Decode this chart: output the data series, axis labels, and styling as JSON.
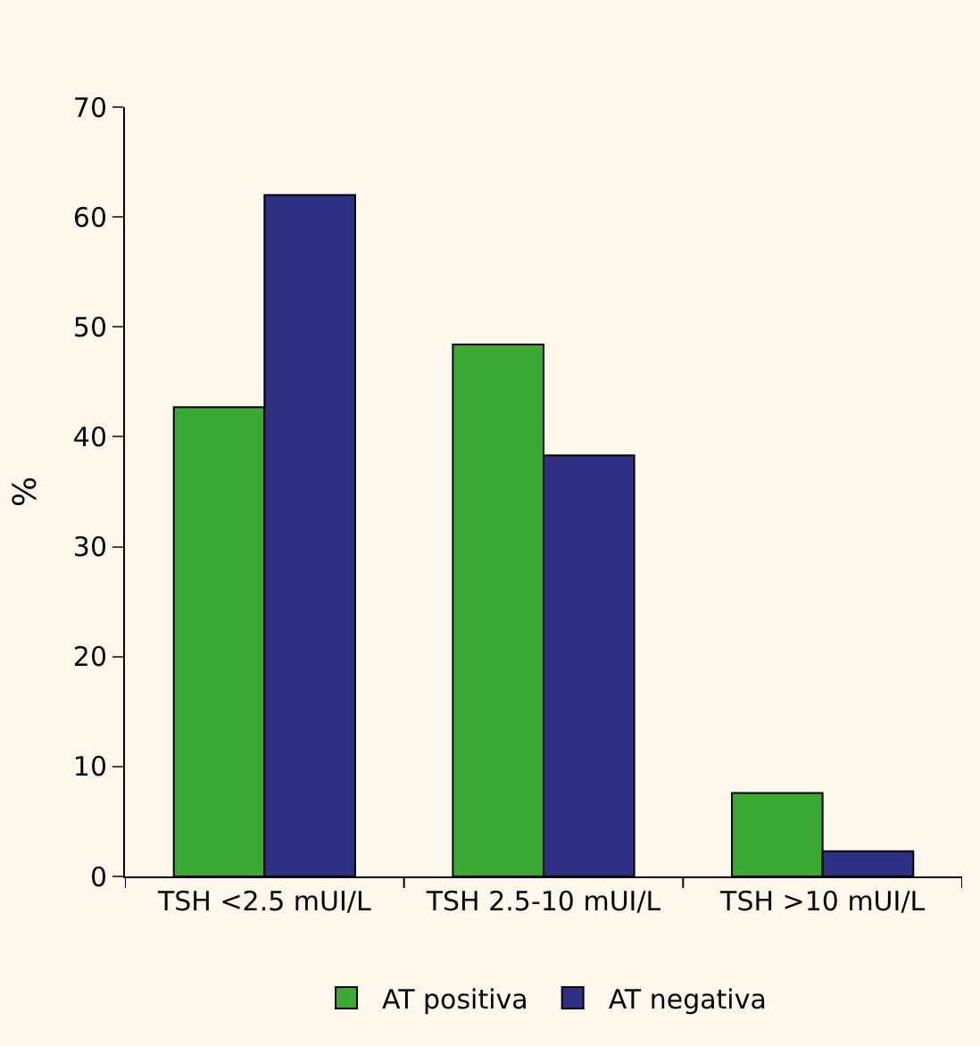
{
  "chart_data": {
    "type": "bar",
    "ylabel": "%",
    "categories": [
      "TSH <2.5 mUI/L",
      "TSH 2.5-10 mUI/L",
      "TSH >10 mUI/L"
    ],
    "series": [
      {
        "name": "AT positiva",
        "color": "#3aaa35",
        "values": [
          42.7,
          48.4,
          7.6
        ]
      },
      {
        "name": "AT negativa",
        "color": "#2e3085",
        "values": [
          62,
          38.3,
          2.3
        ]
      }
    ],
    "ylim": [
      0,
      70
    ],
    "yticks": [
      0,
      10,
      20,
      30,
      40,
      50,
      60,
      70
    ],
    "grid": false,
    "legend": "bottom"
  }
}
